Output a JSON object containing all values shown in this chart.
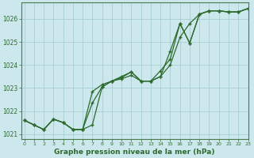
{
  "title": "Graphe pression niveau de la mer (hPa)",
  "background_color": "#cce8ed",
  "grid_color": "#a8cfd6",
  "line_color": "#2d6a2d",
  "ylim": [
    1020.8,
    1026.7
  ],
  "xlim": [
    -0.3,
    23
  ],
  "yticks": [
    1021,
    1022,
    1023,
    1024,
    1025,
    1026
  ],
  "xticks": [
    0,
    1,
    2,
    3,
    4,
    5,
    6,
    7,
    8,
    9,
    10,
    11,
    12,
    13,
    14,
    15,
    16,
    17,
    18,
    19,
    20,
    21,
    22,
    23
  ],
  "series": [
    {
      "x": [
        0,
        1,
        2,
        3,
        4,
        5,
        6,
        7,
        8,
        9,
        10,
        11,
        12,
        13,
        14,
        15,
        16,
        17,
        18,
        19,
        20,
        21,
        22,
        23
      ],
      "y": [
        1021.6,
        1021.4,
        1021.2,
        1021.65,
        1021.5,
        1021.2,
        1021.2,
        1021.4,
        1023.05,
        1023.3,
        1023.45,
        1023.7,
        1023.3,
        1023.3,
        1023.75,
        1024.25,
        1025.8,
        1024.95,
        1026.2,
        1026.35,
        1026.35,
        1026.3,
        1026.3,
        1026.45
      ]
    },
    {
      "x": [
        0,
        1,
        2,
        3,
        4,
        5,
        6,
        7,
        8,
        9,
        10,
        11,
        12,
        13,
        14,
        15,
        16,
        17,
        18,
        19,
        20,
        21,
        22,
        23
      ],
      "y": [
        1021.6,
        1021.4,
        1021.2,
        1021.65,
        1021.5,
        1021.2,
        1021.2,
        1022.35,
        1023.05,
        1023.3,
        1023.4,
        1023.55,
        1023.3,
        1023.3,
        1023.5,
        1024.6,
        1025.8,
        1024.95,
        1026.2,
        1026.35,
        1026.35,
        1026.3,
        1026.3,
        1026.45
      ]
    },
    {
      "x": [
        0,
        1,
        2,
        3,
        4,
        5,
        6,
        7,
        8,
        9,
        10,
        11,
        12,
        13,
        14,
        15,
        16,
        17,
        18,
        19,
        20,
        21,
        22,
        23
      ],
      "y": [
        1021.6,
        1021.4,
        1021.2,
        1021.65,
        1021.5,
        1021.2,
        1021.2,
        1022.85,
        1023.15,
        1023.3,
        1023.5,
        1023.7,
        1023.3,
        1023.3,
        1023.5,
        1024.0,
        1025.2,
        1025.8,
        1026.2,
        1026.35,
        1026.35,
        1026.3,
        1026.3,
        1026.45
      ]
    }
  ]
}
